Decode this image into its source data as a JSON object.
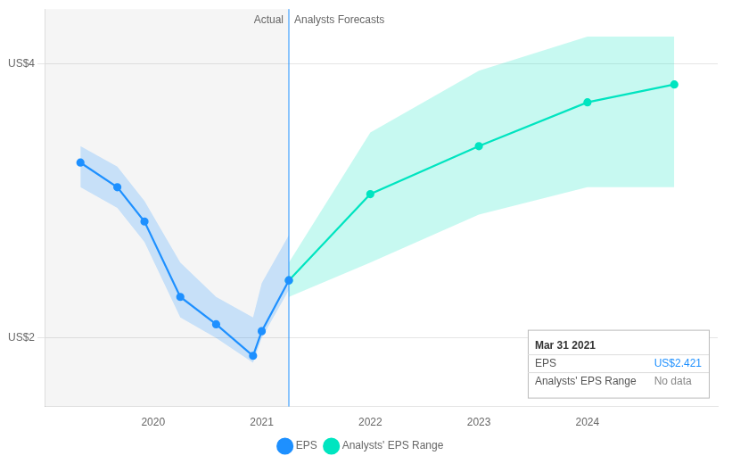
{
  "chart_data": {
    "type": "line",
    "marker": "circle",
    "line_style": "solid",
    "series": [
      {
        "name": "EPS",
        "color": "#1e90ff",
        "x": [
          2019.33,
          2019.67,
          2019.92,
          2020.25,
          2020.58,
          2020.92,
          2021.0,
          2021.25
        ],
        "values": [
          3.28,
          3.1,
          2.85,
          2.3,
          2.1,
          1.87,
          2.05,
          2.421
        ],
        "range_lower": [
          3.1,
          2.95,
          2.7,
          2.15,
          2.0,
          1.82,
          2.0,
          2.35
        ],
        "range_upper": [
          3.4,
          3.25,
          3.0,
          2.55,
          2.3,
          2.15,
          2.4,
          2.75
        ]
      },
      {
        "name": "Analysts' EPS Range",
        "color": "#00e5c0",
        "x": [
          2021.25,
          2022.0,
          2023.0,
          2024.0,
          2024.8
        ],
        "values": [
          2.421,
          3.05,
          3.4,
          3.72,
          3.85
        ],
        "range_lower": [
          2.3,
          2.55,
          2.9,
          3.1,
          3.1
        ],
        "range_upper": [
          2.55,
          3.5,
          3.95,
          4.2,
          4.2
        ]
      }
    ],
    "xlim": [
      2019.0,
      2025.2
    ],
    "xticks": [
      2020,
      2021,
      2022,
      2023,
      2024
    ],
    "ylim": [
      1.5,
      4.4
    ],
    "yticks": [
      {
        "value": 2,
        "label": "US$2"
      },
      {
        "value": 4,
        "label": "US$4"
      }
    ],
    "grid": true,
    "legend": "bottom",
    "divider": {
      "x": 2021.25,
      "labels": [
        "Actual",
        "Analysts Forecasts"
      ]
    },
    "tooltip": {
      "title": "Mar 31 2021",
      "rows": [
        {
          "label": "EPS",
          "value": "US$2.421"
        },
        {
          "label": "Analysts' EPS Range",
          "value": "No data"
        }
      ]
    }
  }
}
